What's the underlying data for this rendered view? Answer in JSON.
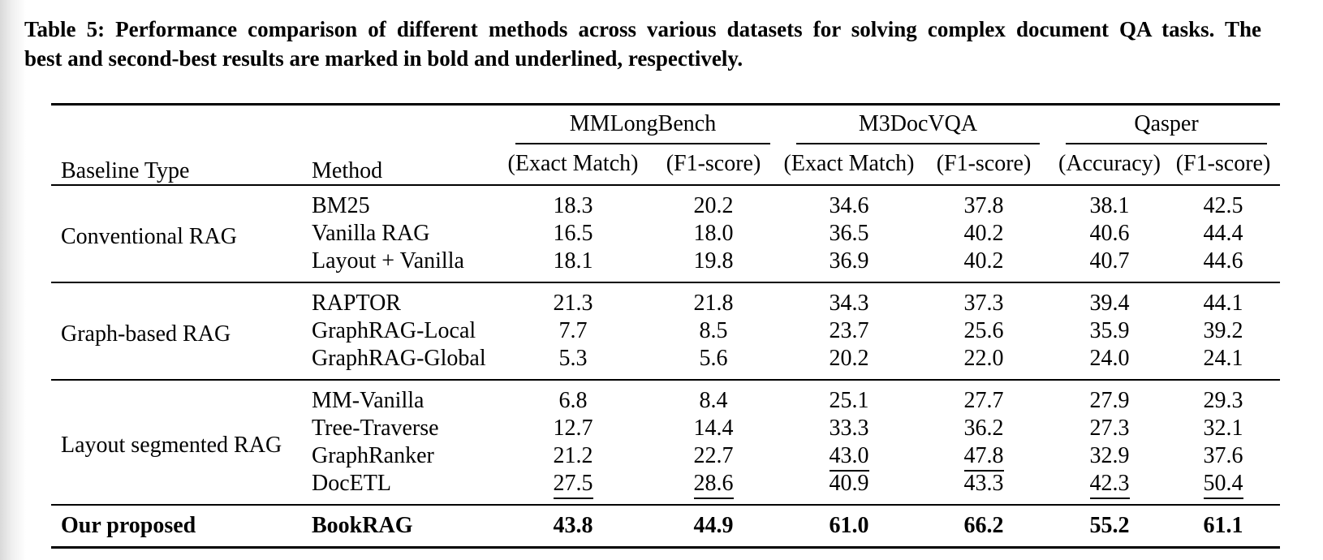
{
  "caption": {
    "line1": "Table 5: Performance comparison of different methods across various datasets for solving complex document QA tasks. The",
    "line2": "best and second-best results are marked in bold and underlined, respectively."
  },
  "table": {
    "headers": {
      "baseline_type": "Baseline Type",
      "method": "Method",
      "groups": [
        {
          "label": "MMLongBench",
          "subcols": [
            "(Exact Match)",
            "(F1-score)"
          ]
        },
        {
          "label": "M3DocVQA",
          "subcols": [
            "(Exact Match)",
            "(F1-score)"
          ]
        },
        {
          "label": "Qasper",
          "subcols": [
            "(Accuracy)",
            "(F1-score)"
          ]
        }
      ]
    },
    "groups": [
      {
        "baseline_type": "Conventional RAG",
        "rows": [
          {
            "method": "BM25",
            "values": [
              "18.3",
              "20.2",
              "34.6",
              "37.8",
              "38.1",
              "42.5"
            ],
            "underlined_cols": []
          },
          {
            "method": "Vanilla RAG",
            "values": [
              "16.5",
              "18.0",
              "36.5",
              "40.2",
              "40.6",
              "44.4"
            ],
            "underlined_cols": []
          },
          {
            "method": "Layout + Vanilla",
            "values": [
              "18.1",
              "19.8",
              "36.9",
              "40.2",
              "40.7",
              "44.6"
            ],
            "underlined_cols": []
          }
        ]
      },
      {
        "baseline_type": "Graph-based RAG",
        "rows": [
          {
            "method": "RAPTOR",
            "values": [
              "21.3",
              "21.8",
              "34.3",
              "37.3",
              "39.4",
              "44.1"
            ],
            "underlined_cols": []
          },
          {
            "method": "GraphRAG-Local",
            "values": [
              "7.7",
              "8.5",
              "23.7",
              "25.6",
              "35.9",
              "39.2"
            ],
            "underlined_cols": []
          },
          {
            "method": "GraphRAG-Global",
            "values": [
              "5.3",
              "5.6",
              "20.2",
              "22.0",
              "24.0",
              "24.1"
            ],
            "underlined_cols": []
          }
        ]
      },
      {
        "baseline_type": "Layout segmented RAG",
        "rows": [
          {
            "method": "MM-Vanilla",
            "values": [
              "6.8",
              "8.4",
              "25.1",
              "27.7",
              "27.9",
              "29.3"
            ],
            "underlined_cols": []
          },
          {
            "method": "Tree-Traverse",
            "values": [
              "12.7",
              "14.4",
              "33.3",
              "36.2",
              "27.3",
              "32.1"
            ],
            "underlined_cols": []
          },
          {
            "method": "GraphRanker",
            "values": [
              "21.2",
              "22.7",
              "43.0",
              "47.8",
              "32.9",
              "37.6"
            ],
            "underlined_cols": [
              2,
              3
            ]
          },
          {
            "method": "DocETL",
            "values": [
              "27.5",
              "28.6",
              "40.9",
              "43.3",
              "42.3",
              "50.4"
            ],
            "underlined_cols": [
              0,
              1,
              4,
              5
            ]
          }
        ]
      }
    ],
    "proposed": {
      "baseline_type": "Our proposed",
      "method": "BookRAG",
      "values": [
        "43.8",
        "44.9",
        "61.0",
        "66.2",
        "55.2",
        "61.1"
      ],
      "emphasis": "bold"
    },
    "legend": {
      "best": "bold",
      "second_best": "underlined"
    }
  },
  "colors": {
    "text": "#000000",
    "background": "#ffffff",
    "rule": "#000000",
    "edge_shade": "#d9d9d9"
  }
}
